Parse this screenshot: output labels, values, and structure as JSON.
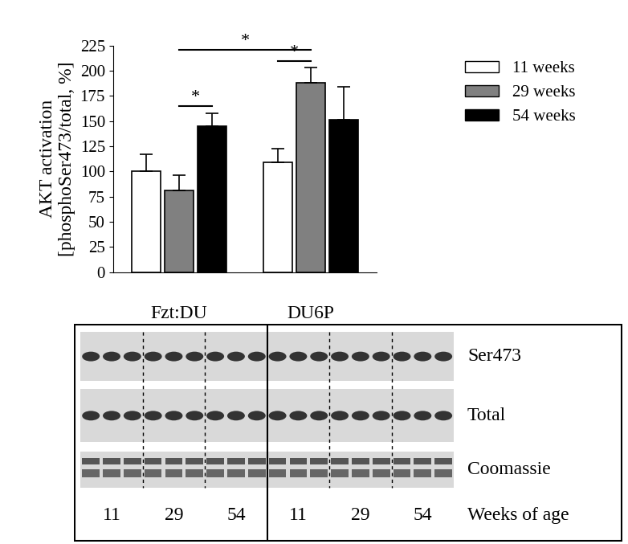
{
  "chart_data": {
    "type": "bar",
    "y_label": "AKT activation\n[phosphoSer473/total, %]",
    "categories": [
      "Fzt:DU",
      "DU6P"
    ],
    "series": [
      {
        "name": "11 weeks",
        "color": "#ffffff",
        "values": [
          100,
          109
        ],
        "errors": [
          17,
          14
        ]
      },
      {
        "name": "29 weeks",
        "color": "#808080",
        "values": [
          81,
          188
        ],
        "errors": [
          15,
          15
        ]
      },
      {
        "name": "54 weeks",
        "color": "#000000",
        "values": [
          145,
          151
        ],
        "errors": [
          13,
          33
        ]
      }
    ],
    "ylim": [
      0,
      225
    ],
    "yticks": [
      0,
      25,
      50,
      75,
      100,
      125,
      150,
      175,
      200,
      225
    ],
    "legend": "upper right",
    "significance": [
      {
        "from": [
          "Fzt:DU",
          "29 weeks"
        ],
        "to": [
          "Fzt:DU",
          "54 weeks"
        ],
        "label": "*"
      },
      {
        "from": [
          "DU6P",
          "11 weeks"
        ],
        "to": [
          "DU6P",
          "29 weeks"
        ],
        "label": "*"
      },
      {
        "from": [
          "Fzt:DU",
          "29 weeks"
        ],
        "to": [
          "DU6P",
          "29 weeks"
        ],
        "label": "*"
      }
    ],
    "blot": {
      "rows": [
        "Ser473",
        "Total",
        "Coomassie"
      ],
      "lane_labels": [
        11,
        29,
        54,
        11,
        29,
        54
      ],
      "axis_label": "Weeks of age"
    }
  }
}
